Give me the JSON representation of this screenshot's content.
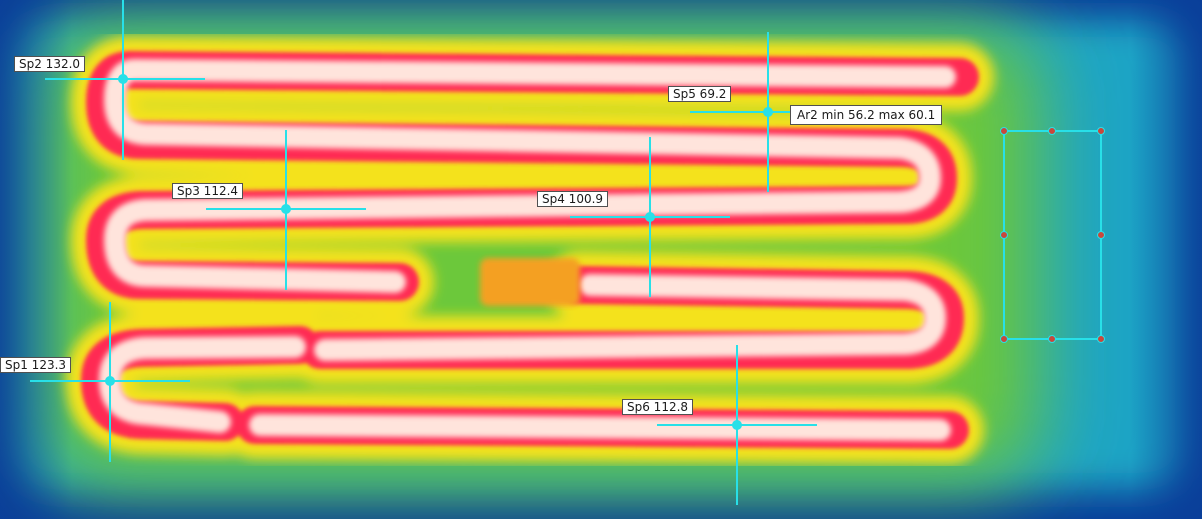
{
  "thermal_image": {
    "palette": "rainbow-iron",
    "colors": {
      "cold": "#0a3f9a",
      "cool": "#1aa0c0",
      "mid": "#8cd22a",
      "warm": "#f2e21a",
      "hot": "#ff2a52",
      "peak": "#ffe8e0",
      "marker": "#28e0e8"
    },
    "spots": [
      {
        "id": "sp2",
        "label": "Sp2 132.0"
      },
      {
        "id": "sp5",
        "label": "Sp5 69.2"
      },
      {
        "id": "sp3",
        "label": "Sp3 112.4"
      },
      {
        "id": "sp4",
        "label": "Sp4 100.9"
      },
      {
        "id": "sp1",
        "label": "Sp1 123.3"
      },
      {
        "id": "sp6",
        "label": "Sp6 112.8"
      }
    ],
    "areas": [
      {
        "id": "ar2",
        "label": "Ar2 min 56.2 max 60.1"
      }
    ]
  }
}
